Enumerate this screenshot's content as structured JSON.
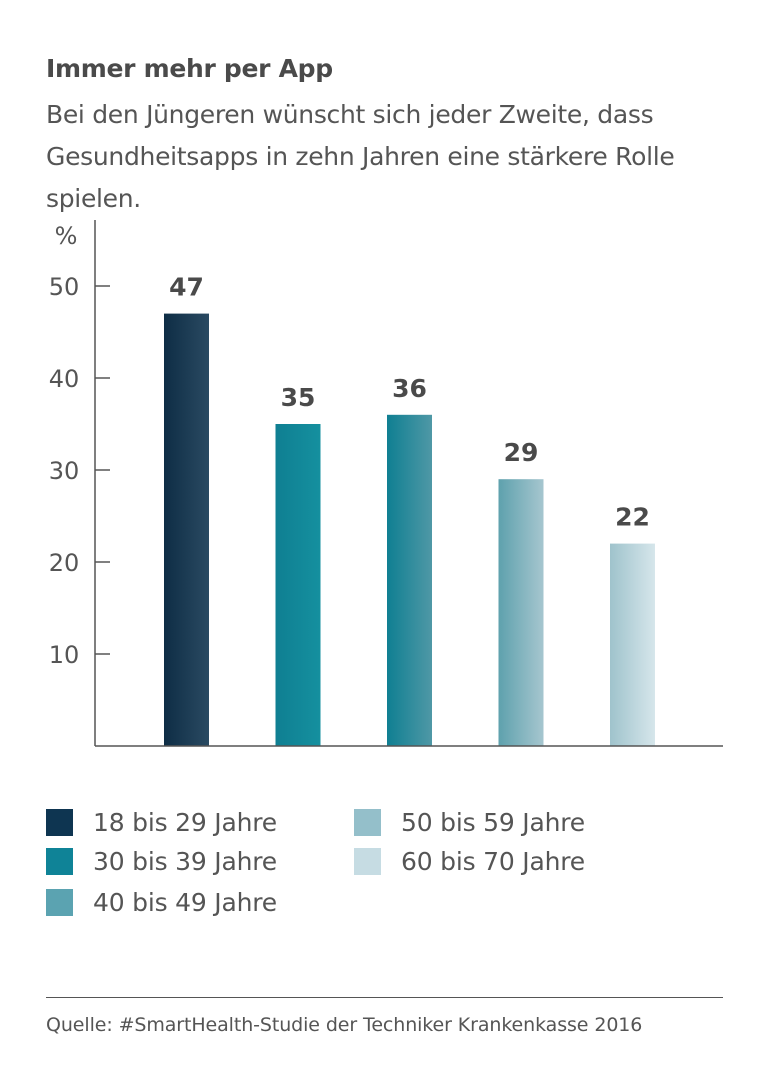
{
  "header": {
    "title": "Immer mehr per App",
    "subtitle": "Bei den Jüngeren wünscht sich jeder Zweite, dass Gesundheitsapps in zehn Jahren eine stärkere Rolle spielen."
  },
  "chart_data": {
    "type": "bar",
    "title": "Immer mehr per App",
    "ylabel": "%",
    "xlabel": "",
    "ylim": [
      0,
      55
    ],
    "yticks": [
      10,
      20,
      30,
      40,
      50
    ],
    "grid": false,
    "categories": [
      "18 bis 29 Jahre",
      "30 bis 39 Jahre",
      "40 bis 49 Jahre",
      "50 bis 59 Jahre",
      "60 bis 70 Jahre"
    ],
    "values": [
      47,
      35,
      36,
      29,
      22
    ],
    "data_labels": [
      "47",
      "35",
      "36",
      "29",
      "22"
    ],
    "legend_position": "bottom"
  },
  "colors": {
    "series": [
      "#0e3551",
      "#0f8397",
      "#5ba3b1",
      "#94bfca",
      "#c6dce3"
    ],
    "bar_gradients": [
      [
        "#0e2d45",
        "#2a4a62"
      ],
      [
        "#0f7f92",
        "#15909f"
      ],
      [
        "#0f7f92",
        "#4f98a6"
      ],
      [
        "#5ea1ad",
        "#a6c6cf"
      ],
      [
        "#9fc3cc",
        "#d6e6eb"
      ]
    ],
    "axis": "#555555",
    "label": "#4a4a4a"
  },
  "footer": {
    "source": "Quelle: #SmartHealth-Studie der Techniker Krankenkasse 2016"
  }
}
